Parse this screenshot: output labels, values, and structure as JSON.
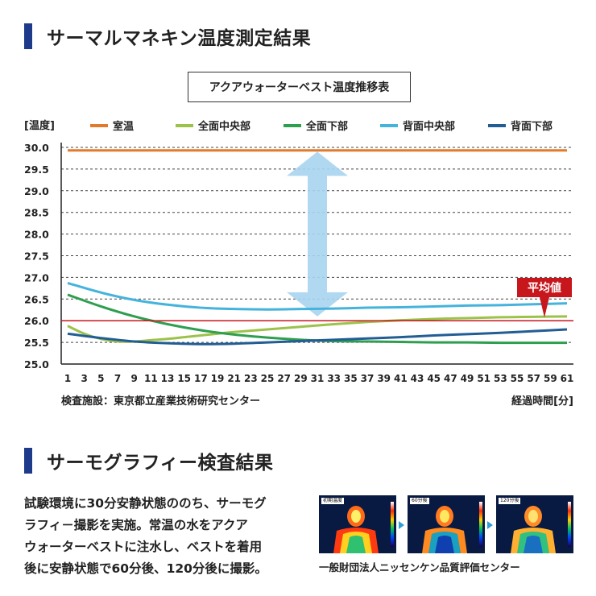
{
  "section1": {
    "title": "サーマルマネキン温度測定結果"
  },
  "section2": {
    "title": "サーモグラフィー検査結果"
  },
  "chart_data": {
    "type": "line",
    "title": "アクアウォーターベスト温度推移表",
    "ylabel": "[温度]",
    "xlabel": "経過時間[分]",
    "source": "検査施設：東京都立産業技術研究センター",
    "legend_position": "top",
    "grid": true,
    "ylim": [
      25.0,
      30.0
    ],
    "yticks": [
      "30.0",
      "29.5",
      "29.0",
      "28.5",
      "28.0",
      "27.5",
      "27.0",
      "26.5",
      "26.0",
      "25.5",
      "25.0"
    ],
    "xlim": [
      1,
      61
    ],
    "xticks": [
      1,
      3,
      5,
      7,
      9,
      11,
      13,
      15,
      17,
      19,
      21,
      23,
      25,
      27,
      29,
      31,
      33,
      35,
      37,
      39,
      41,
      43,
      45,
      47,
      49,
      51,
      53,
      55,
      57,
      59,
      61
    ],
    "series": [
      {
        "name": "室温",
        "color": "#e07a2c",
        "x": [
          1,
          61
        ],
        "y": [
          29.93,
          29.93
        ]
      },
      {
        "name": "全面中央部",
        "color": "#9cc24a",
        "x": [
          1,
          3,
          5,
          7,
          9,
          11,
          13,
          15,
          17,
          19,
          21,
          25,
          29,
          33,
          37,
          41,
          45,
          49,
          53,
          57,
          61
        ],
        "y": [
          25.88,
          25.7,
          25.58,
          25.52,
          25.52,
          25.55,
          25.58,
          25.62,
          25.66,
          25.7,
          25.74,
          25.8,
          25.86,
          25.92,
          25.97,
          26.01,
          26.04,
          26.06,
          26.08,
          26.09,
          26.1
        ]
      },
      {
        "name": "全面下部",
        "color": "#2e9e4f",
        "x": [
          1,
          5,
          9,
          13,
          17,
          21,
          25,
          29,
          33,
          37,
          41,
          45,
          49,
          53,
          57,
          61
        ],
        "y": [
          26.6,
          26.33,
          26.1,
          25.92,
          25.78,
          25.68,
          25.61,
          25.56,
          25.53,
          25.52,
          25.51,
          25.5,
          25.5,
          25.49,
          25.49,
          25.49
        ]
      },
      {
        "name": "背面中央部",
        "color": "#45b3dc",
        "x": [
          1,
          5,
          9,
          13,
          17,
          21,
          25,
          29,
          33,
          37,
          41,
          45,
          49,
          53,
          57,
          61
        ],
        "y": [
          26.87,
          26.65,
          26.48,
          26.37,
          26.3,
          26.27,
          26.26,
          26.27,
          26.28,
          26.3,
          26.31,
          26.33,
          26.35,
          26.36,
          26.38,
          26.4
        ]
      },
      {
        "name": "背面下部",
        "color": "#225d94",
        "x": [
          1,
          5,
          9,
          13,
          17,
          21,
          25,
          29,
          33,
          37,
          41,
          45,
          49,
          53,
          57,
          61
        ],
        "y": [
          25.7,
          25.6,
          25.52,
          25.48,
          25.46,
          25.47,
          25.5,
          25.53,
          25.56,
          25.59,
          25.62,
          25.66,
          25.69,
          25.72,
          25.76,
          25.8
        ]
      }
    ],
    "reference_lines": [
      {
        "label": "平均値",
        "y": 26.0,
        "color": "#c8161d"
      }
    ],
    "annotation": {
      "type": "double-arrow",
      "from": 29.9,
      "to": 26.1,
      "x": 31,
      "color": "#a8d4ef"
    }
  },
  "section2_text": {
    "line1": "試験環境に30分安静状態ののち、サーモグ",
    "line2": "ラフィ－撮影を実施。常温の水をアクア",
    "line3": "ウォーターベストに注水し、ベストを着用",
    "line4": "後に安静状態で60分後、120分後に撮影。"
  },
  "thermo_images": [
    {
      "tag": "初期温度"
    },
    {
      "tag": "60分後"
    },
    {
      "tag": "120分後"
    }
  ],
  "credit": "一般財団法人ニッセンケン品質評価センター"
}
